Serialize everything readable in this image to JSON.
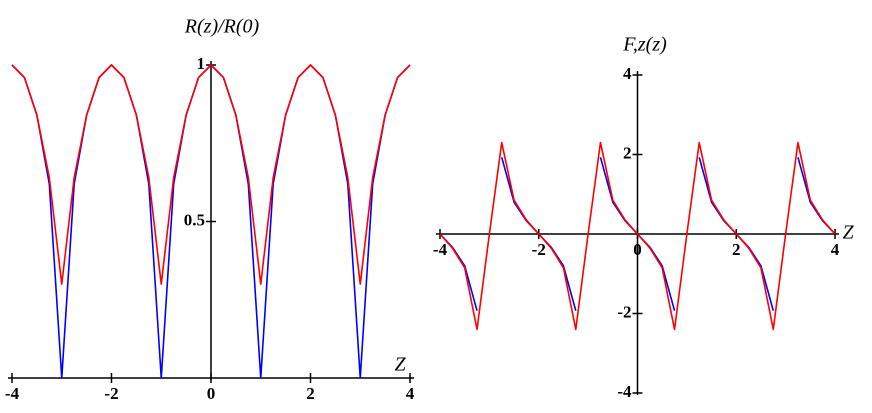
{
  "chart_data": [
    {
      "type": "line",
      "title": "R(z)/R(0)",
      "x_label": "Z",
      "x": [
        -4,
        -3.75,
        -3.5,
        -3.25,
        -3,
        -2.75,
        -2.5,
        -2.25,
        -2,
        -1.75,
        -1.5,
        -1.25,
        -1,
        -0.75,
        -0.5,
        -0.25,
        0,
        0.25,
        0.5,
        0.75,
        1,
        1.25,
        1.5,
        1.75,
        2,
        2.25,
        2.5,
        2.75,
        3,
        3.25,
        3.5,
        3.75,
        4
      ],
      "series": [
        {
          "color": "#0000ff",
          "values": [
            1,
            0.96,
            0.84,
            0.62,
            0,
            0.62,
            0.84,
            0.96,
            1,
            0.96,
            0.84,
            0.62,
            0,
            0.62,
            0.84,
            0.96,
            1,
            0.96,
            0.84,
            0.62,
            0,
            0.62,
            0.84,
            0.96,
            1,
            0.96,
            0.84,
            0.62,
            0,
            0.62,
            0.84,
            0.96,
            1
          ]
        },
        {
          "color": "#ff0000",
          "values": [
            1,
            0.96,
            0.84,
            0.64,
            0.3,
            0.64,
            0.84,
            0.96,
            1,
            0.96,
            0.84,
            0.64,
            0.3,
            0.64,
            0.84,
            0.96,
            1,
            0.96,
            0.84,
            0.64,
            0.3,
            0.64,
            0.84,
            0.96,
            1,
            0.96,
            0.84,
            0.64,
            0.3,
            0.64,
            0.84,
            0.96,
            1
          ]
        }
      ],
      "xlim": [
        -4,
        4
      ],
      "ylim": [
        0,
        1
      ],
      "xticks": [
        -4,
        -2,
        0,
        2,
        4
      ],
      "yticks": [
        0.5,
        1
      ]
    },
    {
      "type": "line",
      "title": "F,z(z)",
      "x_label": "Z",
      "x": [
        -4,
        -3.75,
        -3.5,
        -3.25,
        -3,
        -2.75,
        -2.5,
        -2.25,
        -2,
        -1.75,
        -1.5,
        -1.25,
        -1,
        -0.75,
        -0.5,
        -0.25,
        0,
        0.25,
        0.5,
        0.75,
        1,
        1.25,
        1.5,
        1.75,
        2,
        2.25,
        2.5,
        2.75,
        3,
        3.25,
        3.5,
        3.75,
        4
      ],
      "series": [
        {
          "color": "#0000ff",
          "values": [
            0,
            -0.33,
            -0.8,
            -1.93,
            null,
            1.93,
            0.8,
            0.33,
            0,
            -0.33,
            -0.8,
            -1.93,
            null,
            1.93,
            0.8,
            0.33,
            0,
            -0.33,
            -0.8,
            -1.93,
            null,
            1.93,
            0.8,
            0.33,
            0,
            -0.33,
            -0.8,
            -1.93,
            null,
            1.93,
            0.8,
            0.33,
            0
          ]
        },
        {
          "color": "#ff0000",
          "values": [
            0,
            -0.35,
            -0.85,
            -2.4,
            0,
            2.3,
            0.85,
            0.35,
            0,
            -0.35,
            -0.85,
            -2.4,
            0,
            2.3,
            0.85,
            0.35,
            0,
            -0.35,
            -0.85,
            -2.4,
            0,
            2.3,
            0.85,
            0.35,
            0,
            -0.35,
            -0.85,
            -2.4,
            0,
            2.3,
            0.85,
            0.35,
            0
          ]
        }
      ],
      "xlim": [
        -4,
        4
      ],
      "ylim": [
        -4,
        4
      ],
      "xticks": [
        -4,
        -2,
        0,
        2,
        4
      ],
      "yticks": [
        -4,
        -2,
        2,
        4
      ]
    }
  ]
}
